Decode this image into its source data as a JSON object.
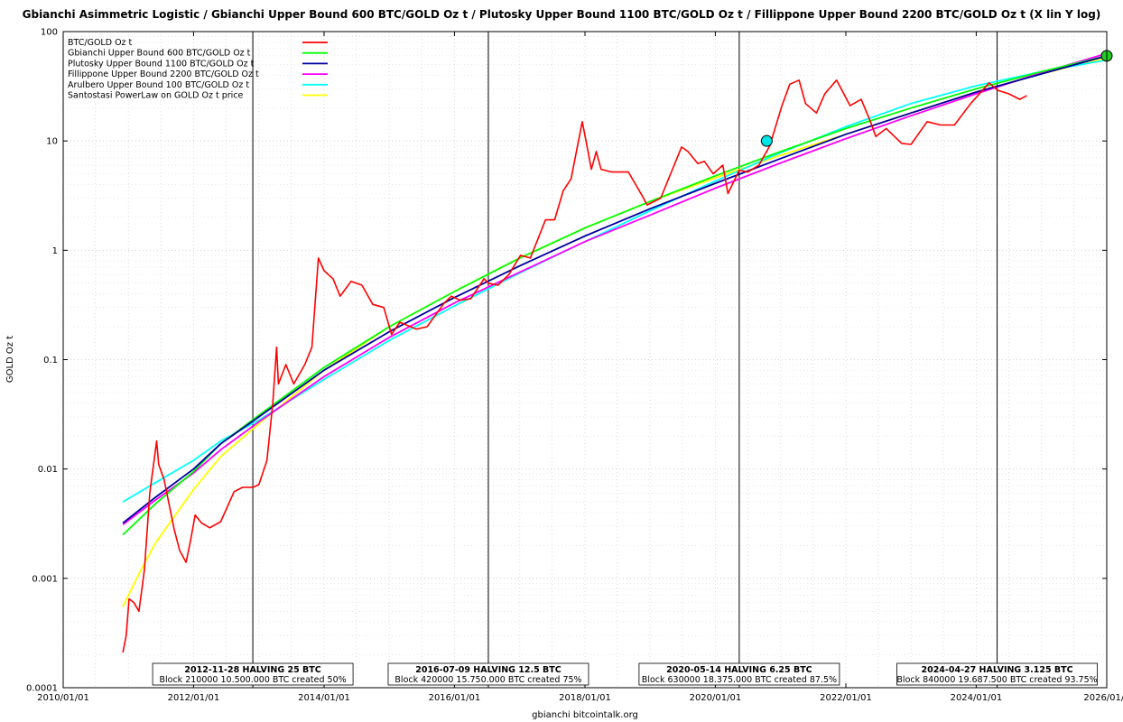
{
  "chart_data": {
    "type": "line",
    "title": "Gbianchi Asimmetric Logistic / Gbianchi Upper Bound 600  BTC/GOLD Oz t / Plutosky Upper Bound 1100  BTC/GOLD Oz t / Fillippone Upper Bound 2200  BTC/GOLD Oz t  (X lin Y log)",
    "xlabel": "gbianchi bitcointalk.org",
    "ylabel": "GOLD Oz t",
    "x_scale": "linear-date",
    "y_scale": "log",
    "xlim": [
      "2010-01-01",
      "2026-01-01"
    ],
    "ylim": [
      0.0001,
      100
    ],
    "grid": true,
    "legend_position": "top-left",
    "x_ticks": [
      "2010/01/01",
      "2012/01/01",
      "2014/01/01",
      "2016/01/01",
      "2018/01/01",
      "2020/01/01",
      "2022/01/01",
      "2024/01/01",
      "2026/01/0"
    ],
    "y_ticks": [
      "0.0001",
      "0.001",
      "0.01",
      "0.1",
      "1",
      "10",
      "100"
    ],
    "series": [
      {
        "name": "BTC/GOLD Oz t",
        "color": "#ff0000",
        "points": [
          [
            "2010-12-01",
            0.00021
          ],
          [
            "2010-12-20",
            0.0003
          ],
          [
            "2011-01-05",
            0.00065
          ],
          [
            "2011-02-01",
            0.0006
          ],
          [
            "2011-03-01",
            0.0005
          ],
          [
            "2011-04-01",
            0.0012
          ],
          [
            "2011-05-01",
            0.006
          ],
          [
            "2011-06-08",
            0.018
          ],
          [
            "2011-06-20",
            0.011
          ],
          [
            "2011-07-20",
            0.008
          ],
          [
            "2011-08-20",
            0.0045
          ],
          [
            "2011-09-15",
            0.0028
          ],
          [
            "2011-10-15",
            0.0018
          ],
          [
            "2011-11-20",
            0.0014
          ],
          [
            "2011-12-15",
            0.0022
          ],
          [
            "2012-01-10",
            0.0038
          ],
          [
            "2012-02-15",
            0.0032
          ],
          [
            "2012-04-01",
            0.0029
          ],
          [
            "2012-06-01",
            0.0033
          ],
          [
            "2012-08-15",
            0.0062
          ],
          [
            "2012-10-01",
            0.0068
          ],
          [
            "2012-11-28",
            0.0068
          ],
          [
            "2013-01-01",
            0.0072
          ],
          [
            "2013-02-15",
            0.012
          ],
          [
            "2013-03-20",
            0.04
          ],
          [
            "2013-04-10",
            0.13
          ],
          [
            "2013-04-20",
            0.06
          ],
          [
            "2013-06-01",
            0.09
          ],
          [
            "2013-07-15",
            0.06
          ],
          [
            "2013-09-15",
            0.09
          ],
          [
            "2013-10-25",
            0.13
          ],
          [
            "2013-11-30",
            0.85
          ],
          [
            "2014-01-01",
            0.65
          ],
          [
            "2014-02-20",
            0.55
          ],
          [
            "2014-04-01",
            0.38
          ],
          [
            "2014-06-01",
            0.52
          ],
          [
            "2014-08-01",
            0.48
          ],
          [
            "2014-10-01",
            0.32
          ],
          [
            "2014-12-01",
            0.3
          ],
          [
            "2015-01-14",
            0.17
          ],
          [
            "2015-03-01",
            0.22
          ],
          [
            "2015-06-01",
            0.19
          ],
          [
            "2015-08-01",
            0.2
          ],
          [
            "2015-11-05",
            0.33
          ],
          [
            "2015-12-15",
            0.38
          ],
          [
            "2016-02-01",
            0.35
          ],
          [
            "2016-04-01",
            0.36
          ],
          [
            "2016-06-15",
            0.55
          ],
          [
            "2016-07-09",
            0.5
          ],
          [
            "2016-09-01",
            0.48
          ],
          [
            "2016-11-01",
            0.6
          ],
          [
            "2017-01-05",
            0.9
          ],
          [
            "2017-03-01",
            0.85
          ],
          [
            "2017-05-25",
            1.9
          ],
          [
            "2017-07-15",
            1.9
          ],
          [
            "2017-09-01",
            3.5
          ],
          [
            "2017-10-15",
            4.5
          ],
          [
            "2017-12-17",
            15
          ],
          [
            "2018-01-15",
            8.5
          ],
          [
            "2018-02-06",
            5.5
          ],
          [
            "2018-03-05",
            8
          ],
          [
            "2018-04-01",
            5.5
          ],
          [
            "2018-06-01",
            5.2
          ],
          [
            "2018-09-01",
            5.2
          ],
          [
            "2018-11-20",
            3.1
          ],
          [
            "2018-12-15",
            2.6
          ],
          [
            "2019-03-01",
            3
          ],
          [
            "2019-06-26",
            8.8
          ],
          [
            "2019-08-01",
            8
          ],
          [
            "2019-09-25",
            6.2
          ],
          [
            "2019-11-01",
            6.5
          ],
          [
            "2019-12-20",
            5
          ],
          [
            "2020-02-12",
            6
          ],
          [
            "2020-03-12",
            3.3
          ],
          [
            "2020-05-14",
            5.4
          ],
          [
            "2020-07-01",
            5.2
          ],
          [
            "2020-09-01",
            6
          ],
          [
            "2020-11-01",
            9
          ],
          [
            "2021-01-08",
            21
          ],
          [
            "2021-02-21",
            33
          ],
          [
            "2021-04-14",
            36
          ],
          [
            "2021-05-20",
            22
          ],
          [
            "2021-07-20",
            18
          ],
          [
            "2021-09-05",
            27
          ],
          [
            "2021-11-10",
            36
          ],
          [
            "2022-01-25",
            21
          ],
          [
            "2022-03-28",
            24
          ],
          [
            "2022-05-12",
            16
          ],
          [
            "2022-06-18",
            11
          ],
          [
            "2022-08-15",
            13
          ],
          [
            "2022-11-10",
            9.5
          ],
          [
            "2023-01-01",
            9.3
          ],
          [
            "2023-04-01",
            15
          ],
          [
            "2023-06-15",
            14
          ],
          [
            "2023-09-01",
            14
          ],
          [
            "2023-12-01",
            22
          ],
          [
            "2024-03-14",
            34
          ],
          [
            "2024-05-01",
            29
          ],
          [
            "2024-07-01",
            27
          ],
          [
            "2024-09-01",
            24
          ],
          [
            "2024-10-10",
            26
          ]
        ]
      },
      {
        "name": "Gbianchi Upper Bound 600  BTC/GOLD Oz t",
        "color": "#00ff00",
        "points": [
          [
            "2010-12-01",
            0.0025
          ],
          [
            "2011-06-01",
            0.0048
          ],
          [
            "2012-01-01",
            0.0095
          ],
          [
            "2012-06-01",
            0.017
          ],
          [
            "2013-01-01",
            0.031
          ],
          [
            "2014-01-01",
            0.085
          ],
          [
            "2015-01-01",
            0.2
          ],
          [
            "2016-01-01",
            0.42
          ],
          [
            "2017-01-01",
            0.85
          ],
          [
            "2018-01-01",
            1.6
          ],
          [
            "2019-01-01",
            2.8
          ],
          [
            "2020-01-01",
            4.8
          ],
          [
            "2021-01-01",
            8
          ],
          [
            "2022-01-01",
            13
          ],
          [
            "2023-01-01",
            20
          ],
          [
            "2024-01-01",
            30
          ],
          [
            "2025-01-01",
            43
          ],
          [
            "2026-01-01",
            60
          ]
        ]
      },
      {
        "name": "Plutosky Upper Bound 1100  BTC/GOLD Oz t",
        "color": "#0000a0",
        "points": [
          [
            "2010-12-01",
            0.0032
          ],
          [
            "2011-06-01",
            0.0055
          ],
          [
            "2012-01-01",
            0.01
          ],
          [
            "2012-06-01",
            0.017
          ],
          [
            "2013-01-01",
            0.03
          ],
          [
            "2014-01-01",
            0.08
          ],
          [
            "2015-01-01",
            0.18
          ],
          [
            "2016-01-01",
            0.37
          ],
          [
            "2017-01-01",
            0.72
          ],
          [
            "2018-01-01",
            1.35
          ],
          [
            "2019-01-01",
            2.4
          ],
          [
            "2020-01-01",
            4.1
          ],
          [
            "2021-01-01",
            6.9
          ],
          [
            "2022-01-01",
            11.5
          ],
          [
            "2023-01-01",
            18
          ],
          [
            "2024-01-01",
            28
          ],
          [
            "2025-01-01",
            41
          ],
          [
            "2026-01-01",
            60
          ]
        ]
      },
      {
        "name": "Fillippone Upper Bound 2200  BTC/GOLD Oz t",
        "color": "#ff00ff",
        "points": [
          [
            "2010-12-01",
            0.0031
          ],
          [
            "2011-06-01",
            0.0052
          ],
          [
            "2012-01-01",
            0.0092
          ],
          [
            "2012-06-01",
            0.015
          ],
          [
            "2013-01-01",
            0.027
          ],
          [
            "2014-01-01",
            0.07
          ],
          [
            "2015-01-01",
            0.16
          ],
          [
            "2016-01-01",
            0.33
          ],
          [
            "2017-01-01",
            0.63
          ],
          [
            "2018-01-01",
            1.2
          ],
          [
            "2019-01-01",
            2.1
          ],
          [
            "2020-01-01",
            3.7
          ],
          [
            "2021-01-01",
            6.3
          ],
          [
            "2022-01-01",
            10.5
          ],
          [
            "2023-01-01",
            17
          ],
          [
            "2024-01-01",
            27
          ],
          [
            "2025-01-01",
            42
          ],
          [
            "2026-01-01",
            63
          ]
        ]
      },
      {
        "name": "Arulbero Upper Bound 100  BTC/GOLD Oz t",
        "color": "#00ffff",
        "points": [
          [
            "2010-12-01",
            0.005
          ],
          [
            "2011-06-01",
            0.0075
          ],
          [
            "2012-01-01",
            0.012
          ],
          [
            "2012-06-01",
            0.018
          ],
          [
            "2013-01-01",
            0.028
          ],
          [
            "2014-01-01",
            0.066
          ],
          [
            "2015-01-01",
            0.15
          ],
          [
            "2016-01-01",
            0.31
          ],
          [
            "2017-01-01",
            0.62
          ],
          [
            "2018-01-01",
            1.2
          ],
          [
            "2019-01-01",
            2.3
          ],
          [
            "2020-01-01",
            4.3
          ],
          [
            "2021-01-01",
            7.8
          ],
          [
            "2022-01-01",
            13.5
          ],
          [
            "2023-01-01",
            22
          ],
          [
            "2024-01-01",
            32
          ],
          [
            "2025-01-01",
            43
          ],
          [
            "2026-01-01",
            55
          ]
        ]
      },
      {
        "name": "Santostasi PowerLaw on GOLD Oz t price",
        "color": "#ffff00",
        "points": [
          [
            "2010-12-01",
            0.00055
          ],
          [
            "2011-03-01",
            0.0011
          ],
          [
            "2011-06-01",
            0.0021
          ],
          [
            "2012-01-01",
            0.0065
          ],
          [
            "2012-06-01",
            0.013
          ],
          [
            "2013-01-01",
            0.026
          ],
          [
            "2014-01-01",
            0.08
          ],
          [
            "2015-01-01",
            0.2
          ],
          [
            "2016-01-01",
            0.42
          ],
          [
            "2017-01-01",
            0.85
          ],
          [
            "2018-01-01",
            1.6
          ],
          [
            "2019-01-01",
            2.8
          ],
          [
            "2020-01-01",
            4.6
          ],
          [
            "2021-01-01",
            7.4
          ],
          [
            "2022-01-01",
            11.5
          ],
          [
            "2023-01-01",
            18
          ],
          [
            "2024-01-01",
            28
          ],
          [
            "2025-01-01",
            41
          ],
          [
            "2026-01-01",
            58
          ]
        ]
      }
    ],
    "markers": [
      {
        "date": "2020-10-15",
        "value": 10,
        "color": "#00e5e5"
      },
      {
        "date": "2026-01-01",
        "value": 60,
        "color": "#22cc22"
      }
    ],
    "halvings": [
      {
        "date": "2012-11-28",
        "title": "2012-11-28 HALVING 25 BTC",
        "sub": "Block 210000 10.500.000 BTC created 50%"
      },
      {
        "date": "2016-07-09",
        "title": "2016-07-09 HALVING 12.5 BTC",
        "sub": "Block 420000 15.750.000 BTC created 75%"
      },
      {
        "date": "2020-05-14",
        "title": "2020-05-14 HALVING 6.25 BTC",
        "sub": "Block 630000 18.375.000 BTC created 87.5%"
      },
      {
        "date": "2024-04-27",
        "title": "2024-04-27 HALVING 3.125 BTC",
        "sub": "Block 840000 19.687.500 BTC created 93.75%"
      }
    ]
  }
}
